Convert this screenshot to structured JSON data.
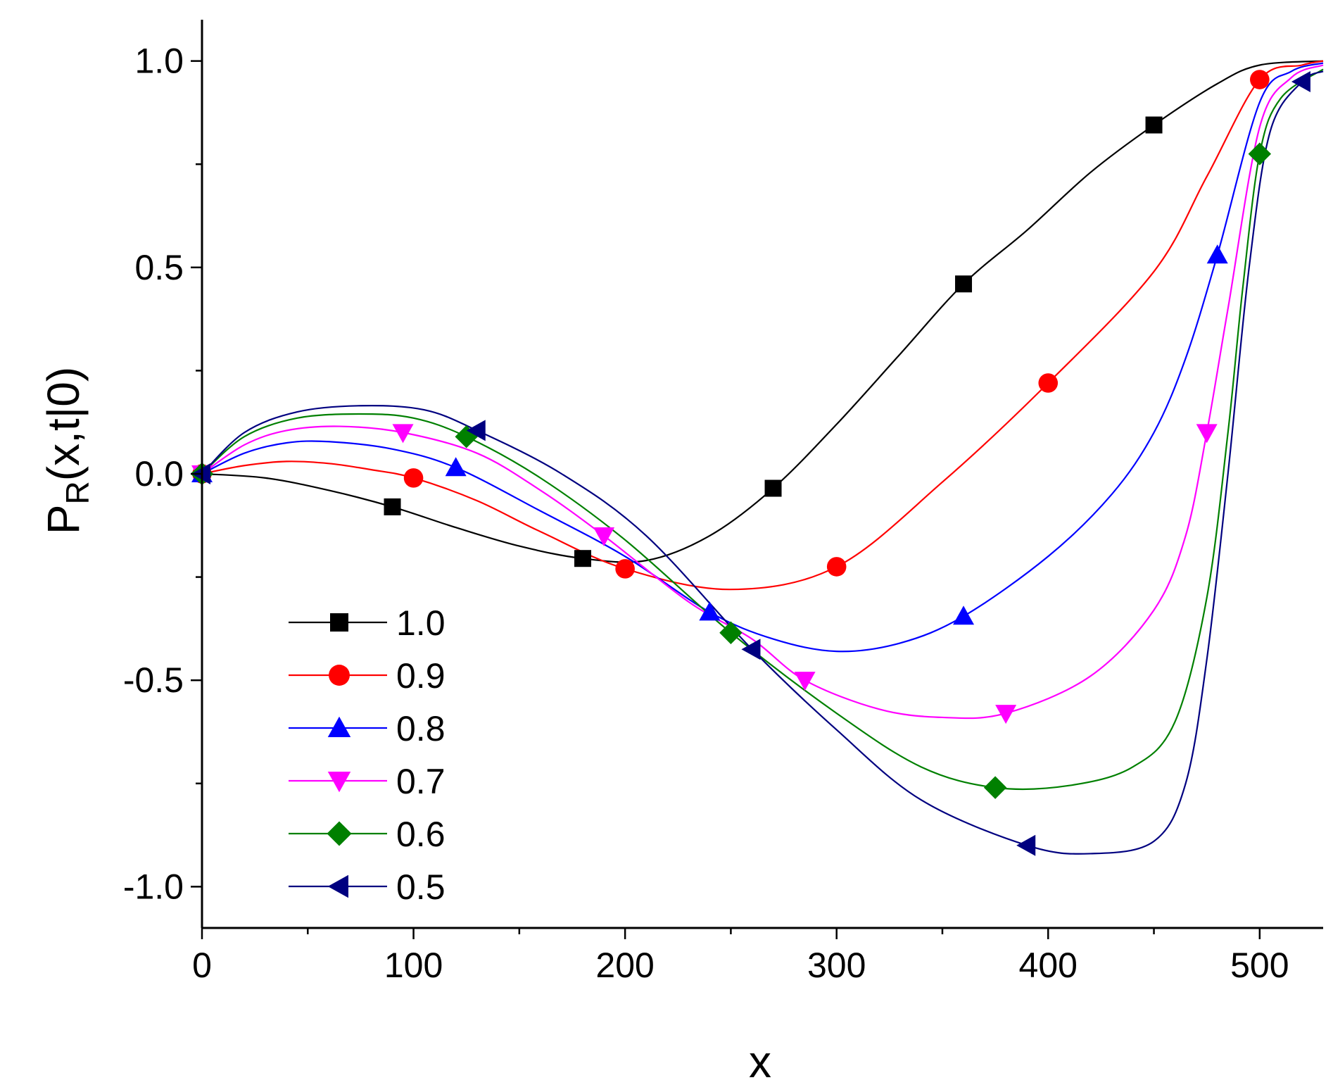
{
  "chart_data": {
    "type": "line",
    "title": "",
    "xlabel": "x",
    "ylabel_main": "P",
    "ylabel_sub": "R",
    "ylabel_rest": "(x,t|0)",
    "xlim": [
      0,
      530
    ],
    "ylim": [
      -1.1,
      1.1
    ],
    "x_ticks": [
      0,
      100,
      200,
      300,
      400,
      500
    ],
    "x_tick_labels": [
      "0",
      "100",
      "200",
      "300",
      "400",
      "500"
    ],
    "y_ticks": [
      -1.0,
      -0.5,
      0.0,
      0.5,
      1.0
    ],
    "y_tick_labels": [
      "-1.0",
      "-0.5",
      "0.0",
      "0.5",
      "1.0"
    ],
    "grid": false,
    "legend_position": "lower-left",
    "series": [
      {
        "name": "1.0",
        "color": "#000000",
        "marker": "square",
        "line": [
          [
            0,
            0
          ],
          [
            30,
            -0.01
          ],
          [
            60,
            -0.04
          ],
          [
            90,
            -0.08
          ],
          [
            120,
            -0.13
          ],
          [
            150,
            -0.175
          ],
          [
            180,
            -0.205
          ],
          [
            210,
            -0.21
          ],
          [
            240,
            -0.15
          ],
          [
            270,
            -0.035
          ],
          [
            300,
            0.12
          ],
          [
            330,
            0.29
          ],
          [
            360,
            0.46
          ],
          [
            390,
            0.59
          ],
          [
            420,
            0.73
          ],
          [
            450,
            0.845
          ],
          [
            480,
            0.945
          ],
          [
            500,
            0.99
          ],
          [
            530,
            1.0
          ]
        ],
        "markers": [
          [
            0,
            0
          ],
          [
            90,
            -0.08
          ],
          [
            180,
            -0.205
          ],
          [
            270,
            -0.035
          ],
          [
            360,
            0.46
          ],
          [
            450,
            0.845
          ]
        ]
      },
      {
        "name": "0.9",
        "color": "#ff0000",
        "marker": "circle",
        "line": [
          [
            0,
            0
          ],
          [
            20,
            0.02
          ],
          [
            40,
            0.03
          ],
          [
            60,
            0.025
          ],
          [
            80,
            0.01
          ],
          [
            100,
            -0.01
          ],
          [
            130,
            -0.065
          ],
          [
            160,
            -0.14
          ],
          [
            200,
            -0.23
          ],
          [
            250,
            -0.28
          ],
          [
            300,
            -0.225
          ],
          [
            350,
            -0.02
          ],
          [
            400,
            0.22
          ],
          [
            450,
            0.49
          ],
          [
            475,
            0.72
          ],
          [
            500,
            0.955
          ],
          [
            520,
            0.99
          ],
          [
            530,
            1.0
          ]
        ],
        "markers": [
          [
            0,
            0
          ],
          [
            100,
            -0.01
          ],
          [
            200,
            -0.23
          ],
          [
            300,
            -0.225
          ],
          [
            400,
            0.22
          ],
          [
            500,
            0.955
          ]
        ]
      },
      {
        "name": "0.8",
        "color": "#0000ff",
        "marker": "triangle-up",
        "line": [
          [
            0,
            0
          ],
          [
            20,
            0.05
          ],
          [
            40,
            0.075
          ],
          [
            60,
            0.078
          ],
          [
            90,
            0.06
          ],
          [
            120,
            0.015
          ],
          [
            160,
            -0.09
          ],
          [
            200,
            -0.2
          ],
          [
            240,
            -0.335
          ],
          [
            270,
            -0.4
          ],
          [
            300,
            -0.43
          ],
          [
            330,
            -0.41
          ],
          [
            360,
            -0.345
          ],
          [
            400,
            -0.2
          ],
          [
            430,
            -0.05
          ],
          [
            450,
            0.1
          ],
          [
            465,
            0.28
          ],
          [
            480,
            0.53
          ],
          [
            500,
            0.9
          ],
          [
            515,
            0.975
          ],
          [
            530,
            0.995
          ]
        ],
        "markers": [
          [
            0,
            0
          ],
          [
            120,
            0.015
          ],
          [
            240,
            -0.335
          ],
          [
            360,
            -0.345
          ],
          [
            480,
            0.53
          ]
        ]
      },
      {
        "name": "0.7",
        "color": "#ff00ff",
        "marker": "triangle-down",
        "line": [
          [
            0,
            0
          ],
          [
            20,
            0.07
          ],
          [
            40,
            0.105
          ],
          [
            65,
            0.115
          ],
          [
            95,
            0.1
          ],
          [
            130,
            0.05
          ],
          [
            160,
            -0.04
          ],
          [
            190,
            -0.15
          ],
          [
            230,
            -0.31
          ],
          [
            260,
            -0.4
          ],
          [
            285,
            -0.5
          ],
          [
            320,
            -0.57
          ],
          [
            350,
            -0.59
          ],
          [
            380,
            -0.58
          ],
          [
            420,
            -0.49
          ],
          [
            450,
            -0.33
          ],
          [
            465,
            -0.15
          ],
          [
            475,
            0.1
          ],
          [
            485,
            0.4
          ],
          [
            500,
            0.84
          ],
          [
            515,
            0.96
          ],
          [
            530,
            0.99
          ]
        ],
        "markers": [
          [
            0,
            0
          ],
          [
            95,
            0.1
          ],
          [
            190,
            -0.15
          ],
          [
            285,
            -0.5
          ],
          [
            380,
            -0.58
          ],
          [
            475,
            0.1
          ]
        ]
      },
      {
        "name": "0.6",
        "color": "#008000",
        "marker": "diamond",
        "line": [
          [
            0,
            0
          ],
          [
            20,
            0.09
          ],
          [
            45,
            0.135
          ],
          [
            75,
            0.145
          ],
          [
            100,
            0.135
          ],
          [
            125,
            0.09
          ],
          [
            160,
            -0.01
          ],
          [
            200,
            -0.16
          ],
          [
            250,
            -0.385
          ],
          [
            300,
            -0.58
          ],
          [
            340,
            -0.71
          ],
          [
            375,
            -0.76
          ],
          [
            410,
            -0.755
          ],
          [
            440,
            -0.71
          ],
          [
            460,
            -0.6
          ],
          [
            475,
            -0.3
          ],
          [
            485,
            0.1
          ],
          [
            492,
            0.45
          ],
          [
            500,
            0.775
          ],
          [
            510,
            0.91
          ],
          [
            530,
            0.98
          ]
        ],
        "markers": [
          [
            0,
            0
          ],
          [
            125,
            0.09
          ],
          [
            250,
            -0.385
          ],
          [
            375,
            -0.76
          ],
          [
            500,
            0.775
          ]
        ]
      },
      {
        "name": "0.5",
        "color": "#000080",
        "marker": "triangle-left",
        "line": [
          [
            0,
            0
          ],
          [
            20,
            0.1
          ],
          [
            45,
            0.15
          ],
          [
            75,
            0.165
          ],
          [
            105,
            0.155
          ],
          [
            130,
            0.105
          ],
          [
            170,
            0.0
          ],
          [
            210,
            -0.15
          ],
          [
            260,
            -0.425
          ],
          [
            300,
            -0.62
          ],
          [
            340,
            -0.79
          ],
          [
            390,
            -0.9
          ],
          [
            420,
            -0.92
          ],
          [
            450,
            -0.89
          ],
          [
            465,
            -0.75
          ],
          [
            475,
            -0.45
          ],
          [
            485,
            0.0
          ],
          [
            495,
            0.5
          ],
          [
            505,
            0.83
          ],
          [
            520,
            0.95
          ],
          [
            530,
            0.975
          ]
        ],
        "markers": [
          [
            0,
            0
          ],
          [
            130,
            0.105
          ],
          [
            260,
            -0.425
          ],
          [
            390,
            -0.9
          ],
          [
            520,
            0.95
          ]
        ]
      }
    ]
  }
}
